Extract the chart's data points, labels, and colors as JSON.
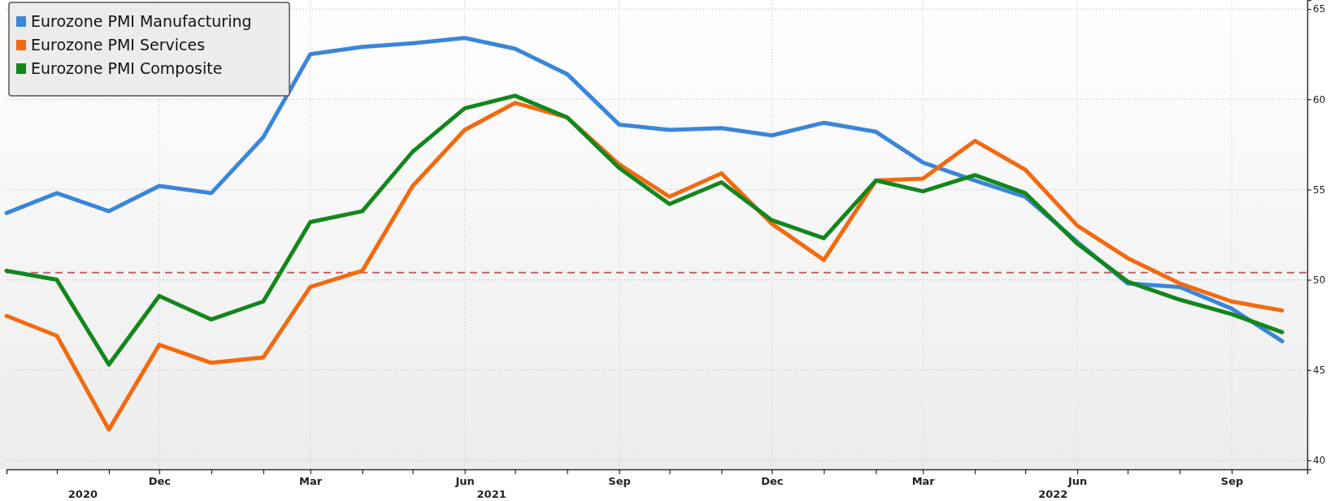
{
  "chart_data": {
    "type": "line",
    "x": [
      "2020-09",
      "2020-10",
      "2020-11",
      "2020-12",
      "2021-01",
      "2021-02",
      "2021-03",
      "2021-04",
      "2021-05",
      "2021-06",
      "2021-07",
      "2021-08",
      "2021-09",
      "2021-10",
      "2021-11",
      "2021-12",
      "2022-01",
      "2022-02",
      "2022-03",
      "2022-04",
      "2022-05",
      "2022-06",
      "2022-07",
      "2022-08",
      "2022-09",
      "2022-10"
    ],
    "series": [
      {
        "name": "Eurozone PMI Manufacturing",
        "color": "#3a86d8",
        "values": [
          53.7,
          54.8,
          53.8,
          55.2,
          54.8,
          57.9,
          62.5,
          62.9,
          63.1,
          63.4,
          62.8,
          61.4,
          58.6,
          58.3,
          58.4,
          58.0,
          58.7,
          58.2,
          56.5,
          55.5,
          54.6,
          52.1,
          49.8,
          49.6,
          48.4,
          46.6
        ]
      },
      {
        "name": "Eurozone PMI Services",
        "color": "#f26a10",
        "values": [
          48.0,
          46.9,
          41.7,
          46.4,
          45.4,
          45.7,
          49.6,
          50.5,
          55.2,
          58.3,
          59.8,
          59.0,
          56.4,
          54.6,
          55.9,
          53.1,
          51.1,
          55.5,
          55.6,
          57.7,
          56.1,
          53.0,
          51.2,
          49.8,
          48.8,
          48.3
        ]
      },
      {
        "name": "Eurozone PMI Composite",
        "color": "#13861c",
        "values": [
          50.5,
          50.0,
          45.3,
          49.1,
          47.8,
          48.8,
          53.2,
          53.8,
          57.1,
          59.5,
          60.2,
          59.0,
          56.2,
          54.2,
          55.4,
          53.3,
          52.3,
          55.5,
          54.9,
          55.8,
          54.8,
          52.0,
          49.9,
          48.9,
          48.1,
          47.1
        ]
      }
    ],
    "xlim": [
      "2020-09",
      "2022-10-16"
    ],
    "xticks": [
      {
        "value": "2020-10",
        "label": null
      },
      {
        "value": "2020-11",
        "label": null
      },
      {
        "value": "2020-12",
        "label": "Dec"
      },
      {
        "value": "2021-01",
        "label": null
      },
      {
        "value": "2021-02",
        "label": null
      },
      {
        "value": "2021-03",
        "label": "Mar"
      },
      {
        "value": "2021-04",
        "label": null
      },
      {
        "value": "2021-05",
        "label": null
      },
      {
        "value": "2021-06",
        "label": "Jun"
      },
      {
        "value": "2021-07",
        "label": null
      },
      {
        "value": "2021-08",
        "label": null
      },
      {
        "value": "2021-09",
        "label": "Sep"
      },
      {
        "value": "2021-10",
        "label": null
      },
      {
        "value": "2021-11",
        "label": null
      },
      {
        "value": "2021-12",
        "label": "Dec"
      },
      {
        "value": "2022-01",
        "label": null
      },
      {
        "value": "2022-02",
        "label": null
      },
      {
        "value": "2022-03",
        "label": "Mar"
      },
      {
        "value": "2022-04",
        "label": null
      },
      {
        "value": "2022-05",
        "label": null
      },
      {
        "value": "2022-06",
        "label": "Jun"
      },
      {
        "value": "2022-07",
        "label": null
      },
      {
        "value": "2022-08",
        "label": null
      },
      {
        "value": "2022-09",
        "label": "Sep"
      }
    ],
    "ylim": [
      39.5,
      65.5
    ],
    "yticks": [
      40,
      45,
      50,
      55,
      60,
      65
    ],
    "grid": true,
    "legend": "top left",
    "ref_lines": [
      {
        "axis": "y",
        "value": 50.4,
        "color": "#c0606a",
        "line_style": "dashed"
      }
    ],
    "annotations": [
      "2020",
      "2021",
      "2022"
    ]
  }
}
